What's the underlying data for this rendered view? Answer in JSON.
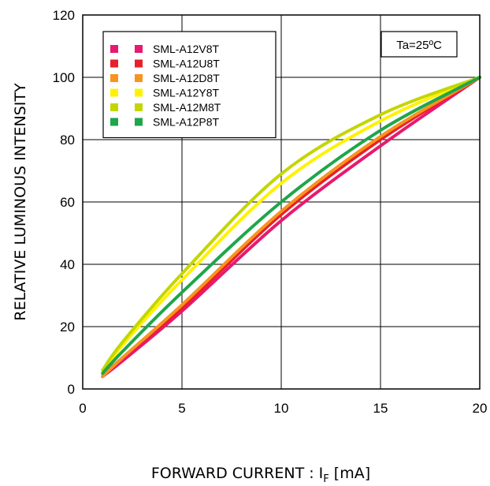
{
  "chart_data": {
    "type": "line",
    "title": "",
    "xlabel": "FORWARD CURRENT : I",
    "xlabel_sub": "F",
    "xlabel_unit": " [mA]",
    "ylabel": "RELATIVE LUMINOUS INTENSITY",
    "xlim": [
      0,
      20
    ],
    "ylim": [
      0,
      120
    ],
    "xticks": [
      0,
      5,
      10,
      15,
      20
    ],
    "yticks": [
      0,
      20,
      40,
      60,
      80,
      100,
      120
    ],
    "xtick_labels": [
      "0",
      "5",
      "10",
      "15",
      "20"
    ],
    "ytick_labels": [
      "0",
      "20",
      "40",
      "60",
      "80",
      "100",
      "120"
    ],
    "grid": true,
    "legend_position": "top-left",
    "annotation": "Ta=25ºC",
    "x": [
      1,
      2,
      5,
      10,
      15,
      20
    ],
    "series": [
      {
        "name": "SML-A12V8T",
        "color": "#e8196e",
        "values": [
          4,
          9,
          25,
          54,
          78,
          100
        ]
      },
      {
        "name": "SML-A12U8T",
        "color": "#e8202a",
        "values": [
          4,
          10,
          26,
          56,
          80,
          100
        ]
      },
      {
        "name": "SML-A12D8T",
        "color": "#f7941d",
        "values": [
          4,
          10,
          27,
          57,
          81,
          100
        ]
      },
      {
        "name": "SML-A12Y8T",
        "color": "#fff200",
        "values": [
          5,
          14,
          35,
          66,
          86,
          100
        ]
      },
      {
        "name": "SML-A12M8T",
        "color": "#c4d600",
        "values": [
          6,
          15,
          37,
          69,
          88,
          100
        ]
      },
      {
        "name": "SML-A12P8T",
        "color": "#1fa64a",
        "values": [
          5,
          12,
          31,
          60,
          83,
          100
        ]
      }
    ]
  }
}
